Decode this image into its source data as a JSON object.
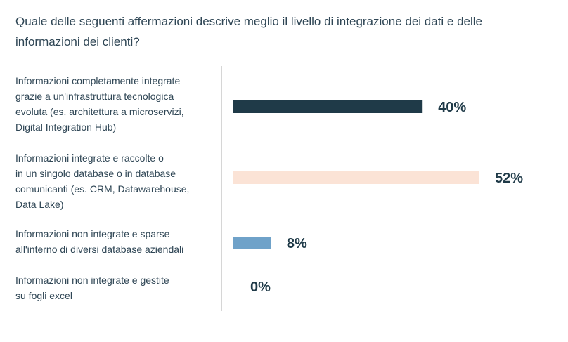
{
  "chart_data": {
    "type": "bar",
    "orientation": "horizontal",
    "title": "Quale delle seguenti affermazioni descrive meglio il livello di integrazione dei dati e delle informazioni dei clienti?",
    "categories": [
      "Informazioni completamente integrate\ngrazie a un'infrastruttura tecnologica\nevoluta (es. architettura a microservizi,\nDigital Integration Hub)",
      "Informazioni integrate e raccolte o\nin un singolo database o in database\ncomunicanti (es. CRM, Datawarehouse,\nData Lake)",
      "Informazioni non integrate e sparse\nall'interno di diversi database aziendali",
      "Informazioni non integrate e gestite\nsu fogli excel"
    ],
    "values": [
      40,
      52,
      8,
      0
    ],
    "value_labels": [
      "40%",
      "52%",
      "8%",
      "0%"
    ],
    "colors": [
      "#1f3a48",
      "#fbe3d6",
      "#6fa2c9",
      "#6fa2c9"
    ],
    "xlim": [
      0,
      100
    ],
    "unit": "%",
    "grid": false,
    "legend": "none"
  }
}
